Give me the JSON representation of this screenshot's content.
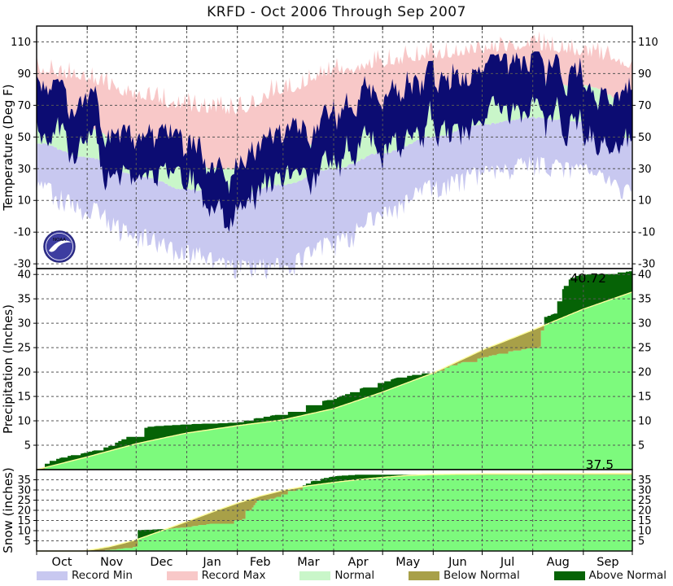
{
  "title": "KRFD - Oct 2006 Through Sep 2007",
  "x_axis": {
    "months": [
      "Oct",
      "Nov",
      "Dec",
      "Jan",
      "Feb",
      "Mar",
      "Apr",
      "May",
      "Jun",
      "Jul",
      "Aug",
      "Sep"
    ],
    "month_start_days": [
      0,
      31,
      61,
      92,
      123,
      151,
      182,
      212,
      243,
      273,
      304,
      335
    ],
    "total_days": 365
  },
  "legend": {
    "items": [
      {
        "label": "Record Min",
        "color": "#c8c8f0"
      },
      {
        "label": "Record Max",
        "color": "#f8c8c8"
      },
      {
        "label": "Normal",
        "color": "#c9f6c9"
      },
      {
        "label": "Below Normal",
        "color": "#a8a048"
      },
      {
        "label": "Above Normal",
        "color": "#066306"
      }
    ]
  },
  "logo": {
    "text": "NOAA"
  },
  "colors": {
    "record_min": "#c8c8f0",
    "record_max": "#f8c8c8",
    "normal_band": "#c9f6c9",
    "actual_temp": "#0c0c72",
    "cumulative_fill": "#7dfa7d",
    "below_normal": "#a8a048",
    "above_normal": "#066306",
    "normal_line": "#ffff9e",
    "grid": "#555555",
    "border": "#000000",
    "logo_blue": "#3d3da0"
  },
  "chart_data": [
    {
      "type": "area",
      "name": "temperature",
      "ylabel": "Temperature (Deg F)",
      "yticks": [
        110,
        90,
        70,
        50,
        30,
        10,
        -10,
        -30
      ],
      "ylim": [
        -33,
        120
      ],
      "monthly_series": {
        "record_max": [
          88,
          82,
          72,
          64,
          62,
          75,
          86,
          92,
          97,
          101,
          103,
          99,
          91
        ],
        "normal_max": [
          67,
          55,
          41,
          31,
          30,
          38,
          50,
          63,
          74,
          82,
          85,
          82,
          72
        ],
        "normal_min": [
          46,
          37,
          26,
          17,
          14,
          20,
          30,
          40,
          50,
          58,
          62,
          60,
          49
        ],
        "record_min": [
          25,
          12,
          -5,
          -16,
          -25,
          -24,
          -10,
          8,
          25,
          34,
          40,
          35,
          22
        ],
        "actual_high_mean": [
          80,
          56,
          42,
          40,
          25,
          45,
          58,
          72,
          82,
          86,
          87,
          83,
          76
        ],
        "actual_low_mean": [
          60,
          40,
          28,
          26,
          8,
          27,
          38,
          50,
          58,
          63,
          65,
          62,
          54
        ]
      }
    },
    {
      "type": "area",
      "name": "precipitation",
      "ylabel": "Precipitation (Inches)",
      "yticks": [
        40,
        35,
        30,
        25,
        20,
        15,
        10,
        5
      ],
      "ylim": [
        0,
        41.2
      ],
      "season_total_label": "40.72",
      "actual_cumulative": [
        [
          0,
          0
        ],
        [
          2,
          0.5
        ],
        [
          5,
          1.2
        ],
        [
          8,
          1.8
        ],
        [
          14,
          2.4
        ],
        [
          20,
          2.9
        ],
        [
          26,
          3.2
        ],
        [
          31,
          3.6
        ],
        [
          38,
          4.2
        ],
        [
          45,
          5.0
        ],
        [
          52,
          6.2
        ],
        [
          58,
          7.2
        ],
        [
          61,
          8.0
        ],
        [
          68,
          8.8
        ],
        [
          75,
          9.0
        ],
        [
          92,
          9.3
        ],
        [
          100,
          9.4
        ],
        [
          112,
          9.5
        ],
        [
          123,
          9.7
        ],
        [
          130,
          10.3
        ],
        [
          140,
          10.9
        ],
        [
          151,
          11.5
        ],
        [
          158,
          12.3
        ],
        [
          165,
          13.2
        ],
        [
          172,
          13.9
        ],
        [
          182,
          14.5
        ],
        [
          190,
          15.6
        ],
        [
          197,
          16.5
        ],
        [
          205,
          17.4
        ],
        [
          212,
          18.0
        ],
        [
          220,
          18.8
        ],
        [
          228,
          19.3
        ],
        [
          235,
          19.7
        ],
        [
          243,
          20.0
        ],
        [
          255,
          21.5
        ],
        [
          265,
          22.4
        ],
        [
          273,
          23.0
        ],
        [
          290,
          24.3
        ],
        [
          304,
          25.0
        ],
        [
          308,
          25.2
        ],
        [
          309,
          28.5
        ],
        [
          311,
          31.3
        ],
        [
          317,
          32.0
        ],
        [
          318,
          33.5
        ],
        [
          320,
          35.5
        ],
        [
          322,
          37.0
        ],
        [
          324,
          38.3
        ],
        [
          327,
          39.3
        ],
        [
          330,
          39.7
        ],
        [
          335,
          40.0
        ],
        [
          352,
          40.1
        ],
        [
          356,
          40.4
        ],
        [
          365,
          40.72
        ]
      ],
      "normal_cumulative": [
        [
          0,
          0
        ],
        [
          31,
          2.6
        ],
        [
          61,
          5.3
        ],
        [
          92,
          7.5
        ],
        [
          123,
          9.0
        ],
        [
          151,
          10.2
        ],
        [
          182,
          12.5
        ],
        [
          212,
          15.9
        ],
        [
          243,
          19.8
        ],
        [
          273,
          24.5
        ],
        [
          304,
          28.6
        ],
        [
          335,
          32.9
        ],
        [
          365,
          36.4
        ]
      ]
    },
    {
      "type": "area",
      "name": "snow",
      "ylabel": "Snow (inches)",
      "yticks": [
        35,
        30,
        25,
        20,
        15,
        10,
        5
      ],
      "ylim": [
        0,
        40
      ],
      "season_total_label": "37.5",
      "actual_cumulative": [
        [
          0,
          0
        ],
        [
          37,
          0
        ],
        [
          40,
          0.3
        ],
        [
          47,
          0.8
        ],
        [
          52,
          1.2
        ],
        [
          57,
          1.8
        ],
        [
          61,
          2.2
        ],
        [
          62,
          10.3
        ],
        [
          80,
          10.9
        ],
        [
          92,
          11.8
        ],
        [
          100,
          12.8
        ],
        [
          108,
          13.6
        ],
        [
          116,
          14.6
        ],
        [
          123,
          15.2
        ],
        [
          127,
          16.0
        ],
        [
          128,
          19.8
        ],
        [
          131,
          20.2
        ],
        [
          135,
          24.8
        ],
        [
          140,
          25.2
        ],
        [
          146,
          26.2
        ],
        [
          150,
          27.8
        ],
        [
          152,
          29.3
        ],
        [
          157,
          29.8
        ],
        [
          160,
          30.5
        ],
        [
          164,
          32.8
        ],
        [
          168,
          34.3
        ],
        [
          172,
          35.2
        ],
        [
          178,
          36.2
        ],
        [
          183,
          36.8
        ],
        [
          190,
          37.3
        ],
        [
          196,
          37.5
        ],
        [
          365,
          37.5
        ]
      ],
      "normal_cumulative": [
        [
          0,
          0
        ],
        [
          28,
          0
        ],
        [
          35,
          0.8
        ],
        [
          45,
          2.2
        ],
        [
          61,
          5.5
        ],
        [
          75,
          9.5
        ],
        [
          92,
          14.5
        ],
        [
          107,
          19.0
        ],
        [
          123,
          23.5
        ],
        [
          137,
          27.0
        ],
        [
          151,
          29.8
        ],
        [
          166,
          32.0
        ],
        [
          181,
          33.6
        ],
        [
          196,
          35.0
        ],
        [
          212,
          36.2
        ],
        [
          227,
          37.1
        ],
        [
          243,
          37.6
        ],
        [
          273,
          37.9
        ],
        [
          365,
          38.0
        ]
      ]
    }
  ]
}
